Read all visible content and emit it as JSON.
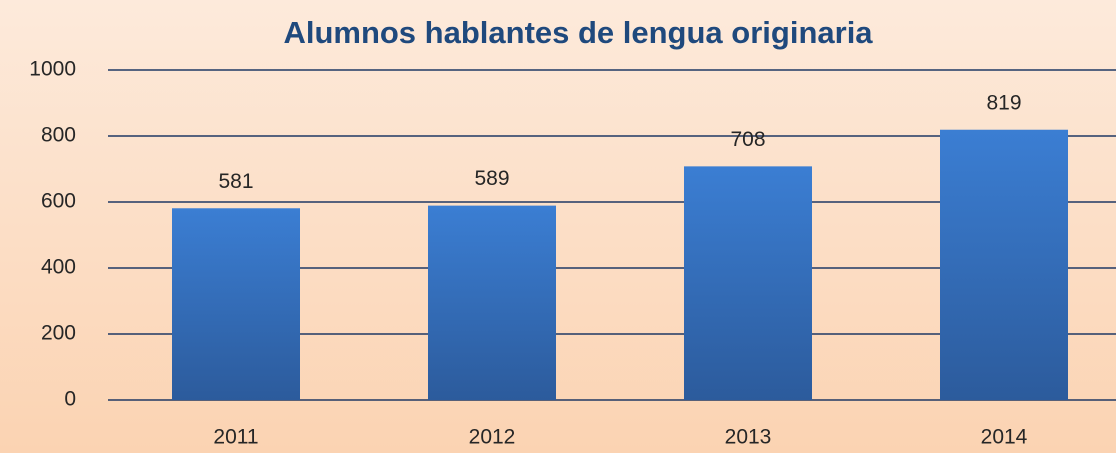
{
  "chart_data": {
    "type": "bar",
    "title": "Alumnos hablantes de lengua originaria",
    "categories": [
      "2011",
      "2012",
      "2013",
      "2014"
    ],
    "values": [
      581,
      589,
      708,
      819
    ],
    "color": "#3a7acc",
    "ylim": [
      0,
      1000
    ],
    "yticks": [
      0,
      200,
      400,
      600,
      800,
      1000
    ],
    "grid": true
  }
}
